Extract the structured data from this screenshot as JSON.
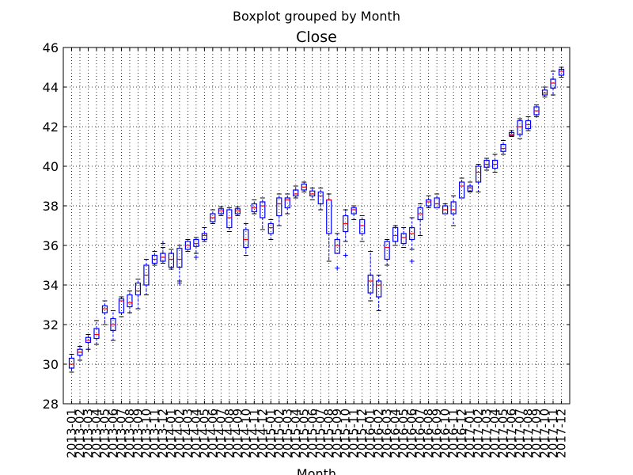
{
  "chart_data": {
    "type": "boxplot",
    "suptitle": "Boxplot grouped by Month",
    "title": "Close",
    "xlabel": "Month",
    "ylabel": "",
    "ylim": [
      28,
      46
    ],
    "yticks": [
      28,
      30,
      32,
      34,
      36,
      38,
      40,
      42,
      44,
      46
    ],
    "grid": true,
    "colors": {
      "box": "#0000ff",
      "median": "#ff0000",
      "whisker": "#0000ff",
      "flier": "#0000ff",
      "grid": "#000000"
    },
    "categories": [
      "2013-01",
      "2013-02",
      "2013-03",
      "2013-04",
      "2013-05",
      "2013-06",
      "2013-07",
      "2013-08",
      "2013-09",
      "2013-10",
      "2013-11",
      "2013-12",
      "2014-01",
      "2014-02",
      "2014-03",
      "2014-04",
      "2014-05",
      "2014-06",
      "2014-07",
      "2014-08",
      "2014-09",
      "2014-10",
      "2014-11",
      "2014-12",
      "2015-01",
      "2015-02",
      "2015-03",
      "2015-04",
      "2015-05",
      "2015-06",
      "2015-07",
      "2015-08",
      "2015-09",
      "2015-10",
      "2015-11",
      "2015-12",
      "2016-01",
      "2016-02",
      "2016-03",
      "2016-04",
      "2016-05",
      "2016-06",
      "2016-07",
      "2016-08",
      "2016-09",
      "2016-10",
      "2016-11",
      "2016-12",
      "2017-01",
      "2017-02",
      "2017-03",
      "2017-04",
      "2017-05",
      "2017-06",
      "2017-07",
      "2017-08",
      "2017-09",
      "2017-10",
      "2017-11",
      "2017-12"
    ],
    "tick_labels": [
      "2013-01",
      "2013-02",
      "2013-03",
      "2013-04",
      "2013-05",
      "2013-06",
      "2013-07",
      "2013-08",
      "2013-09",
      "2013-10",
      "2013-11",
      "2013-12",
      "2014-01",
      "2014-02",
      "2014-03",
      "2014-04",
      "2014-05",
      "2014-06",
      "2014-07",
      "2014-08",
      "2014-09",
      "2014-10",
      "2014-11",
      "2014-12",
      "2015-01",
      "2015-02",
      "2015-03",
      "2015-04",
      "2015-05",
      "2015-06",
      "2015-07",
      "2015-08",
      "2015-09",
      "2015-10",
      "2015-11",
      "2015-12",
      "2016-01",
      "2016-02",
      "2016-03",
      "2016-04",
      "2016-05",
      "2016-06",
      "2016-07",
      "2016-08",
      "2016-09",
      "2016-10",
      "2016-11",
      "2016-12",
      "2017-01",
      "2017-02",
      "2017-03",
      "2017-04",
      "2017-05",
      "2017-06",
      "2017-07",
      "2017-08",
      "2017-09",
      "2017-10",
      "2017-11",
      "2017-12"
    ],
    "boxes": [
      {
        "whislo": 29.6,
        "q1": 29.8,
        "med": 30.0,
        "q3": 30.3,
        "whishi": 30.5,
        "fliers": []
      },
      {
        "whislo": 30.2,
        "q1": 30.45,
        "med": 30.6,
        "q3": 30.75,
        "whishi": 30.9,
        "fliers": []
      },
      {
        "whislo": 30.75,
        "q1": 31.1,
        "med": 31.2,
        "q3": 31.35,
        "whishi": 31.5,
        "fliers": [
          30.75
        ]
      },
      {
        "whislo": 31.0,
        "q1": 31.3,
        "med": 31.5,
        "q3": 31.8,
        "whishi": 32.2,
        "fliers": []
      },
      {
        "whislo": 32.0,
        "q1": 32.6,
        "med": 32.8,
        "q3": 32.95,
        "whishi": 33.2,
        "fliers": []
      },
      {
        "whislo": 31.2,
        "q1": 31.7,
        "med": 32.0,
        "q3": 32.3,
        "whishi": 32.7,
        "fliers": []
      },
      {
        "whislo": 32.4,
        "q1": 32.6,
        "med": 33.2,
        "q3": 33.3,
        "whishi": 33.4,
        "fliers": []
      },
      {
        "whislo": 32.6,
        "q1": 32.9,
        "med": 33.1,
        "q3": 33.5,
        "whishi": 33.7,
        "fliers": []
      },
      {
        "whislo": 32.8,
        "q1": 33.5,
        "med": 33.7,
        "q3": 34.1,
        "whishi": 34.3,
        "fliers": []
      },
      {
        "whislo": 33.5,
        "q1": 34.0,
        "med": 34.5,
        "q3": 35.0,
        "whishi": 35.3,
        "fliers": []
      },
      {
        "whislo": 35.0,
        "q1": 35.1,
        "med": 35.3,
        "q3": 35.5,
        "whishi": 35.7,
        "fliers": []
      },
      {
        "whislo": 35.1,
        "q1": 35.2,
        "med": 35.4,
        "q3": 35.6,
        "whishi": 35.9,
        "fliers": [
          36.1
        ]
      },
      {
        "whislo": 34.8,
        "q1": 34.9,
        "med": 35.3,
        "q3": 35.6,
        "whishi": 35.8,
        "fliers": []
      },
      {
        "whislo": 34.2,
        "q1": 34.9,
        "med": 35.3,
        "q3": 35.85,
        "whishi": 36.0,
        "fliers": [
          34.1
        ]
      },
      {
        "whislo": 35.7,
        "q1": 35.8,
        "med": 36.0,
        "q3": 36.2,
        "whishi": 36.3,
        "fliers": []
      },
      {
        "whislo": 35.6,
        "q1": 35.95,
        "med": 36.1,
        "q3": 36.3,
        "whishi": 36.4,
        "fliers": [
          35.4
        ]
      },
      {
        "whislo": 36.2,
        "q1": 36.3,
        "med": 36.5,
        "q3": 36.6,
        "whishi": 36.9,
        "fliers": []
      },
      {
        "whislo": 37.1,
        "q1": 37.2,
        "med": 37.4,
        "q3": 37.6,
        "whishi": 37.8,
        "fliers": []
      },
      {
        "whislo": 37.5,
        "q1": 37.6,
        "med": 37.75,
        "q3": 37.85,
        "whishi": 37.95,
        "fliers": []
      },
      {
        "whislo": 36.7,
        "q1": 36.9,
        "med": 37.4,
        "q3": 37.8,
        "whishi": 37.9,
        "fliers": []
      },
      {
        "whislo": 37.5,
        "q1": 37.6,
        "med": 37.75,
        "q3": 37.85,
        "whishi": 37.95,
        "fliers": []
      },
      {
        "whislo": 35.5,
        "q1": 35.9,
        "med": 36.3,
        "q3": 36.8,
        "whishi": 37.1,
        "fliers": []
      },
      {
        "whislo": 37.6,
        "q1": 37.7,
        "med": 37.9,
        "q3": 38.1,
        "whishi": 38.3,
        "fliers": []
      },
      {
        "whislo": 36.8,
        "q1": 37.4,
        "med": 38.0,
        "q3": 38.2,
        "whishi": 38.4,
        "fliers": []
      },
      {
        "whislo": 36.3,
        "q1": 36.6,
        "med": 36.9,
        "q3": 37.1,
        "whishi": 37.3,
        "fliers": []
      },
      {
        "whislo": 37.0,
        "q1": 37.5,
        "med": 38.1,
        "q3": 38.4,
        "whishi": 38.6,
        "fliers": []
      },
      {
        "whislo": 37.6,
        "q1": 37.9,
        "med": 38.3,
        "q3": 38.4,
        "whishi": 38.6,
        "fliers": []
      },
      {
        "whislo": 38.4,
        "q1": 38.5,
        "med": 38.6,
        "q3": 38.8,
        "whishi": 39.0,
        "fliers": []
      },
      {
        "whislo": 38.7,
        "q1": 38.8,
        "med": 38.95,
        "q3": 39.1,
        "whishi": 39.2,
        "fliers": []
      },
      {
        "whislo": 38.3,
        "q1": 38.5,
        "med": 38.6,
        "q3": 38.75,
        "whishi": 38.9,
        "fliers": []
      },
      {
        "whislo": 37.8,
        "q1": 38.1,
        "med": 38.5,
        "q3": 38.7,
        "whishi": 38.9,
        "fliers": []
      },
      {
        "whislo": 35.2,
        "q1": 36.6,
        "med": 38.3,
        "q3": 38.3,
        "whishi": 38.6,
        "fliers": []
      },
      {
        "whislo": 35.6,
        "q1": 35.6,
        "med": 36.0,
        "q3": 36.3,
        "whishi": 36.6,
        "fliers": [
          34.85
        ]
      },
      {
        "whislo": 36.2,
        "q1": 36.7,
        "med": 37.1,
        "q3": 37.5,
        "whishi": 37.8,
        "fliers": [
          35.5
        ]
      },
      {
        "whislo": 37.3,
        "q1": 37.6,
        "med": 37.8,
        "q3": 37.9,
        "whishi": 38.0,
        "fliers": []
      },
      {
        "whislo": 36.2,
        "q1": 36.6,
        "med": 37.0,
        "q3": 37.3,
        "whishi": 37.5,
        "fliers": []
      },
      {
        "whislo": 33.2,
        "q1": 33.6,
        "med": 34.2,
        "q3": 34.5,
        "whishi": 35.7,
        "fliers": []
      },
      {
        "whislo": 32.7,
        "q1": 33.4,
        "med": 34.0,
        "q3": 34.2,
        "whishi": 34.5,
        "fliers": []
      },
      {
        "whislo": 35.0,
        "q1": 35.3,
        "med": 35.9,
        "q3": 36.2,
        "whishi": 36.3,
        "fliers": []
      },
      {
        "whislo": 36.0,
        "q1": 36.2,
        "med": 36.5,
        "q3": 36.9,
        "whishi": 37.0,
        "fliers": []
      },
      {
        "whislo": 35.9,
        "q1": 36.1,
        "med": 36.4,
        "q3": 36.6,
        "whishi": 36.9,
        "fliers": []
      },
      {
        "whislo": 35.8,
        "q1": 36.3,
        "med": 36.6,
        "q3": 36.9,
        "whishi": 37.4,
        "fliers": [
          35.2
        ]
      },
      {
        "whislo": 36.5,
        "q1": 37.3,
        "med": 37.6,
        "q3": 37.9,
        "whishi": 38.1,
        "fliers": []
      },
      {
        "whislo": 37.9,
        "q1": 38.0,
        "med": 38.2,
        "q3": 38.3,
        "whishi": 38.5,
        "fliers": []
      },
      {
        "whislo": 37.9,
        "q1": 37.9,
        "med": 38.1,
        "q3": 38.4,
        "whishi": 38.6,
        "fliers": []
      },
      {
        "whislo": 37.6,
        "q1": 37.6,
        "med": 37.8,
        "q3": 38.0,
        "whishi": 38.1,
        "fliers": []
      },
      {
        "whislo": 37.0,
        "q1": 37.6,
        "med": 37.8,
        "q3": 38.2,
        "whishi": 38.5,
        "fliers": []
      },
      {
        "whislo": 38.4,
        "q1": 38.4,
        "med": 39.0,
        "q3": 39.2,
        "whishi": 39.4,
        "fliers": []
      },
      {
        "whislo": 38.7,
        "q1": 38.75,
        "med": 38.9,
        "q3": 39.0,
        "whishi": 39.2,
        "fliers": []
      },
      {
        "whislo": 38.7,
        "q1": 39.2,
        "med": 39.7,
        "q3": 40.0,
        "whishi": 40.1,
        "fliers": []
      },
      {
        "whislo": 39.8,
        "q1": 39.95,
        "med": 40.1,
        "q3": 40.3,
        "whishi": 40.4,
        "fliers": []
      },
      {
        "whislo": 39.7,
        "q1": 39.9,
        "med": 40.1,
        "q3": 40.3,
        "whishi": 40.6,
        "fliers": []
      },
      {
        "whislo": 40.6,
        "q1": 40.75,
        "med": 40.9,
        "q3": 41.1,
        "whishi": 41.3,
        "fliers": []
      },
      {
        "whislo": 41.5,
        "q1": 41.55,
        "med": 41.6,
        "q3": 41.7,
        "whishi": 41.8,
        "fliers": []
      },
      {
        "whislo": 41.4,
        "q1": 41.6,
        "med": 42.0,
        "q3": 42.3,
        "whishi": 42.4,
        "fliers": []
      },
      {
        "whislo": 41.8,
        "q1": 41.9,
        "med": 42.1,
        "q3": 42.3,
        "whishi": 42.5,
        "fliers": []
      },
      {
        "whislo": 42.5,
        "q1": 42.6,
        "med": 42.8,
        "q3": 43.0,
        "whishi": 43.1,
        "fliers": []
      },
      {
        "whislo": 43.5,
        "q1": 43.6,
        "med": 43.7,
        "q3": 43.85,
        "whishi": 44.0,
        "fliers": []
      },
      {
        "whislo": 43.6,
        "q1": 43.95,
        "med": 44.2,
        "q3": 44.4,
        "whishi": 44.8,
        "fliers": []
      },
      {
        "whislo": 44.5,
        "q1": 44.6,
        "med": 44.8,
        "q3": 44.9,
        "whishi": 45.0,
        "fliers": []
      }
    ]
  }
}
